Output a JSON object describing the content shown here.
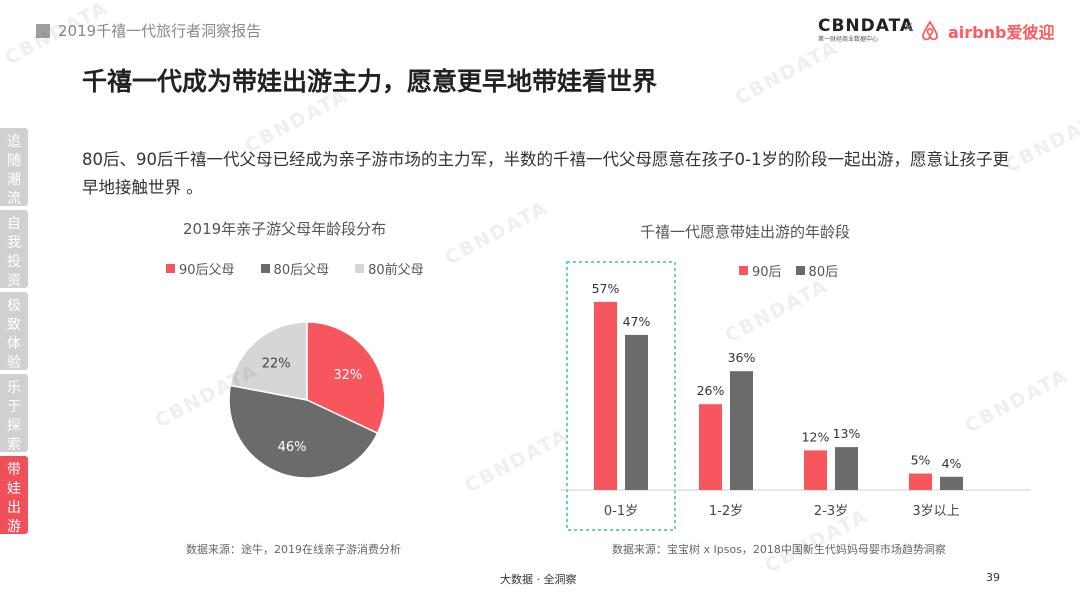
{
  "header": {
    "report_title": "2019千禧一代旅行者洞察报告"
  },
  "brand": {
    "cbn": "CBNDATA",
    "cbn_sub": "第一财经商业数据中心",
    "x": "×",
    "airbnb": "airbnb爱彼迎"
  },
  "main_title": "千禧一代成为带娃出游主力，愿意更早地带娃看世界",
  "description": "80后、90后千禧一代父母已经成为亲子游市场的主力军，半数的千禧一代父母愿意在孩子0-1岁的阶段一起出游，愿意让孩子更早地接触世界 。",
  "side_nav": [
    {
      "label": "追随潮流",
      "active": false
    },
    {
      "label": "自我投资",
      "active": false
    },
    {
      "label": "极致体验",
      "active": false
    },
    {
      "label": "乐于探索",
      "active": false
    },
    {
      "label": "带娃出游",
      "active": true
    }
  ],
  "chart_data": [
    {
      "type": "pie",
      "title": "2019年亲子游父母年龄段分布",
      "categories": [
        "90后父母",
        "80后父母",
        "80前父母"
      ],
      "values": [
        32,
        46,
        22
      ],
      "labels": [
        "32%",
        "46%",
        "22%"
      ],
      "colors": [
        "#f7565e",
        "#6b6b6b",
        "#d6d6d6"
      ],
      "legend": "top",
      "source": "数据来源：途牛，2019在线亲子游消费分析"
    },
    {
      "type": "bar",
      "title": "千禧一代愿意带娃出游的年龄段",
      "categories": [
        "0-1岁",
        "1-2岁",
        "2-3岁",
        "3岁以上"
      ],
      "series": [
        {
          "name": "90后",
          "values": [
            57,
            26,
            12,
            5
          ],
          "labels": [
            "57%",
            "26%",
            "12%",
            "5%"
          ],
          "color": "#f7565e"
        },
        {
          "name": "80后",
          "values": [
            47,
            36,
            13,
            4
          ],
          "labels": [
            "47%",
            "36%",
            "13%",
            "4%"
          ],
          "color": "#6b6b6b"
        }
      ],
      "ylim": [
        0,
        60
      ],
      "grid": false,
      "legend": "top",
      "highlight": "0-1岁",
      "source": "数据来源：宝宝树 x Ipsos，2018中国新生代妈妈母婴市场趋势洞察"
    }
  ],
  "footer": {
    "text": "大数据 · 全洞察",
    "page": "39"
  },
  "watermark": "CBNDATA"
}
